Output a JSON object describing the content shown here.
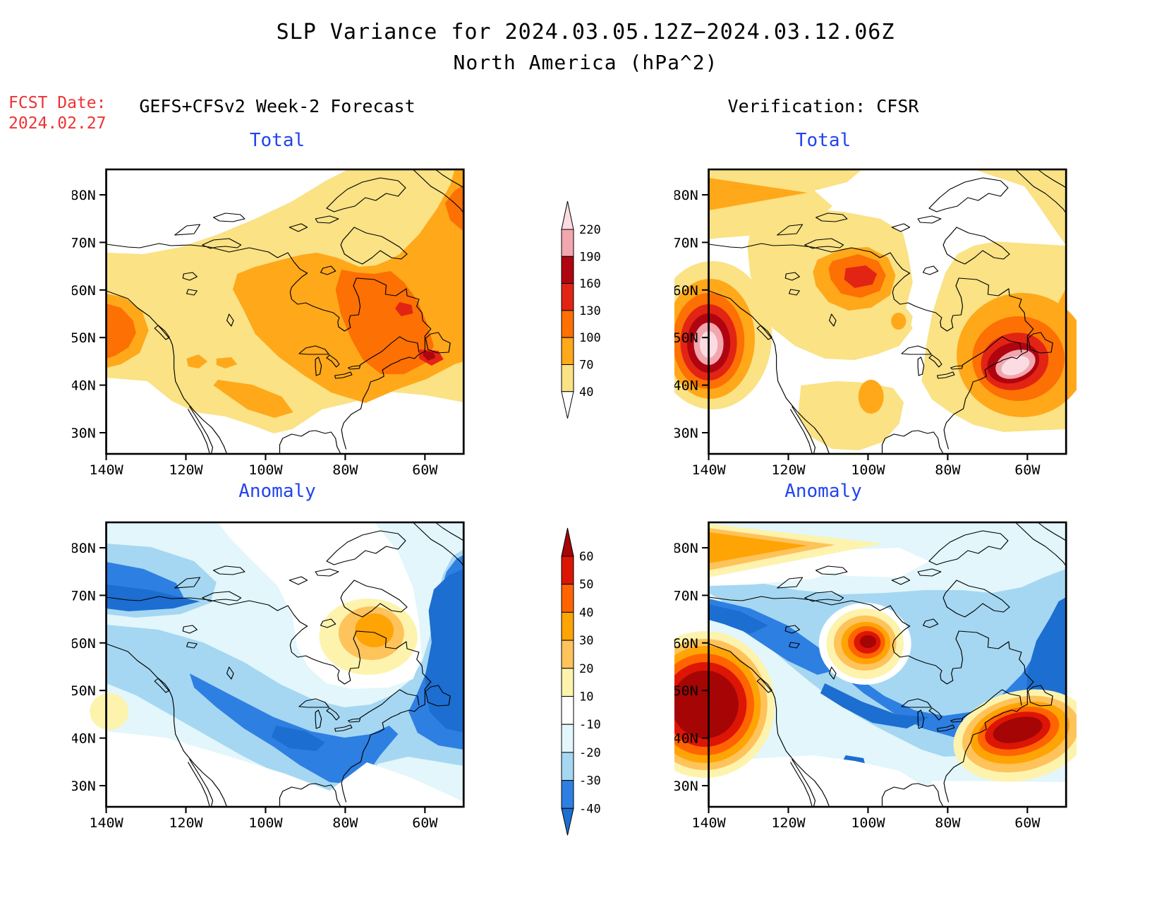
{
  "title": {
    "line1": "SLP Variance for 2024.03.05.12Z−2024.03.12.06Z",
    "line2": "North America (hPa^2)"
  },
  "forecast_info": {
    "label": "FCST Date:",
    "date": "2024.02.27"
  },
  "columns": {
    "left_header": "GEFS+CFSv2 Week-2 Forecast",
    "right_header": "Verification: CFSR"
  },
  "panels": [
    {
      "id": "fcst_total",
      "title": "Total",
      "column": "GEFS+CFSv2 Week-2 Forecast"
    },
    {
      "id": "cfsr_total",
      "title": "Total",
      "column": "Verification: CFSR"
    },
    {
      "id": "fcst_anomaly",
      "title": "Anomaly",
      "column": "GEFS+CFSv2 Week-2 Forecast"
    },
    {
      "id": "cfsr_anomaly",
      "title": "Anomaly",
      "column": "Verification: CFSR"
    }
  ],
  "axes": {
    "lat_ticks": [
      "80N",
      "70N",
      "60N",
      "50N",
      "40N",
      "30N"
    ],
    "lon_ticks": [
      "140W",
      "120W",
      "100W",
      "80W",
      "60W"
    ]
  },
  "colorbars": {
    "total": {
      "levels": [
        "220",
        "190",
        "160",
        "130",
        "100",
        "70",
        "40"
      ],
      "band_colors_top_to_bottom": [
        "#F2A6AE",
        "#B00510",
        "#E22414",
        "#FD7003",
        "#FFA81A",
        "#FAE285"
      ],
      "above_max_color": "#FBDCE2",
      "below_min_color": "#FFFFFF"
    },
    "anomaly": {
      "levels": [
        "60",
        "50",
        "40",
        "30",
        "20",
        "10",
        "-10",
        "-20",
        "-30",
        "-40"
      ],
      "band_colors_top_to_bottom": [
        "#DC1505",
        "#FF6400",
        "#FFA405",
        "#FFC35B",
        "#FDF3AD",
        "#FFFFFF",
        "#E2F6FB",
        "#A5D7F2",
        "#2E7FE2"
      ],
      "above_max_color": "#A50505",
      "below_min_color": "#1C6ED0"
    }
  },
  "palette": {
    "total": {
      "40": "#FAE285",
      "70": "#FFA81A",
      "100": "#FD7003",
      "130": "#E22414",
      "160": "#B00510",
      "190": "#F2A6AE",
      "220": "#FBDCE2"
    },
    "anomaly_positive": {
      "10": "#FDF3AD",
      "20": "#FFC35B",
      "30": "#FFA405",
      "40": "#FF6400",
      "50": "#DC1505",
      "60": "#A50505"
    },
    "anomaly_negative": {
      "10": "#E2F6FB",
      "20": "#A5D7F2",
      "30": "#2E7FE2",
      "40": "#1C6ED0"
    }
  },
  "colors": {
    "panel_title": "#2244EE",
    "fcst_date": "#EE3333",
    "coastline": "#000000"
  },
  "chart_data": [
    {
      "panel": "fcst_total",
      "title": "Total",
      "source": "GEFS+CFSv2 Week-2 Forecast",
      "type": "heatmap",
      "units": "hPa^2",
      "contour_levels": [
        40,
        70,
        100,
        130,
        160,
        190,
        220
      ],
      "lat_ticks": [
        "30N",
        "40N",
        "50N",
        "60N",
        "70N",
        "80N"
      ],
      "lon_ticks": [
        "140W",
        "120W",
        "100W",
        "80W",
        "60W"
      ],
      "features": [
        "Broad 40-70 hPa^2 variance covering most of Canada and the northern U.S.",
        "70-130 hPa^2 band from central Canada through Quebec to the U.S. east coast",
        "Local maximum 130-160 hPa^2 near the Gulf of St. Lawrence (~47N 67W)",
        "Secondary 70-130 hPa^2 maximum on the Pacific coast near 50N 138W",
        "Variance below 40 hPa^2 over the western Arctic islands and the southern U.S."
      ]
    },
    {
      "panel": "cfsr_total",
      "title": "Total",
      "source": "Verification: CFSR",
      "type": "heatmap",
      "units": "hPa^2",
      "contour_levels": [
        40,
        70,
        100,
        130,
        160,
        190,
        220
      ],
      "lat_ticks": [
        "30N",
        "40N",
        "50N",
        "60N",
        "70N",
        "80N"
      ],
      "lon_ticks": [
        "140W",
        "120W",
        "100W",
        "80W",
        "60W"
      ],
      "features": [
        "Strong maximum exceeding 220 hPa^2 on the Pacific coast near 51N 137W",
        "Strong elongated maximum exceeding 220 hPa^2 off the east coast near 44N 64W",
        "Secondary maximum 100-160 hPa^2 over northwest Canada near 63N 103W",
        "Patchy 40-70 hPa^2 elsewhere; minima over the Arctic Archipelago and south-central U.S."
      ]
    },
    {
      "panel": "fcst_anomaly",
      "title": "Anomaly",
      "source": "GEFS+CFSv2 Week-2 Forecast",
      "type": "heatmap",
      "units": "hPa^2",
      "contour_levels": [
        -40,
        -30,
        -20,
        -10,
        10,
        20,
        30,
        40,
        50,
        60
      ],
      "lat_ticks": [
        "30N",
        "40N",
        "50N",
        "60N",
        "70N",
        "80N"
      ],
      "lon_ticks": [
        "140W",
        "120W",
        "100W",
        "80W",
        "60W"
      ],
      "features": [
        "Negative anomalies (-10 to below -40 hPa^2) over most of Canada",
        "Strongest negative band from the Great Lakes to Labrador and along 60N",
        "Deep negative core in the northwest near 72N 135W and along the eastern edge",
        "Positive anomaly +10 to +40 hPa^2 centered over Hudson Bay (~63N 80W)",
        "Small positive patch on the Pacific coast near 52N 140W"
      ]
    },
    {
      "panel": "cfsr_anomaly",
      "title": "Anomaly",
      "source": "Verification: CFSR",
      "type": "heatmap",
      "units": "hPa^2",
      "contour_levels": [
        -40,
        -30,
        -20,
        -10,
        10,
        20,
        30,
        40,
        50,
        60
      ],
      "lat_ticks": [
        "30N",
        "40N",
        "50N",
        "60N",
        "70N",
        "80N"
      ],
      "lon_ticks": [
        "140W",
        "120W",
        "100W",
        "80W",
        "60W"
      ],
      "features": [
        "Strong positive anomalies above +60 hPa^2 on the Pacific coast (~50N 136W)",
        "Strong positive core above +60 hPa^2 over northwest Canada (~63N 103W)",
        "Strong positive core above +60 hPa^2 off the east coast (~43N 65W)",
        "Positive wedge along 80N west of 115W",
        "Widespread negative anomalies -10 to below -40 hPa^2 across central and eastern Canada"
      ]
    }
  ]
}
